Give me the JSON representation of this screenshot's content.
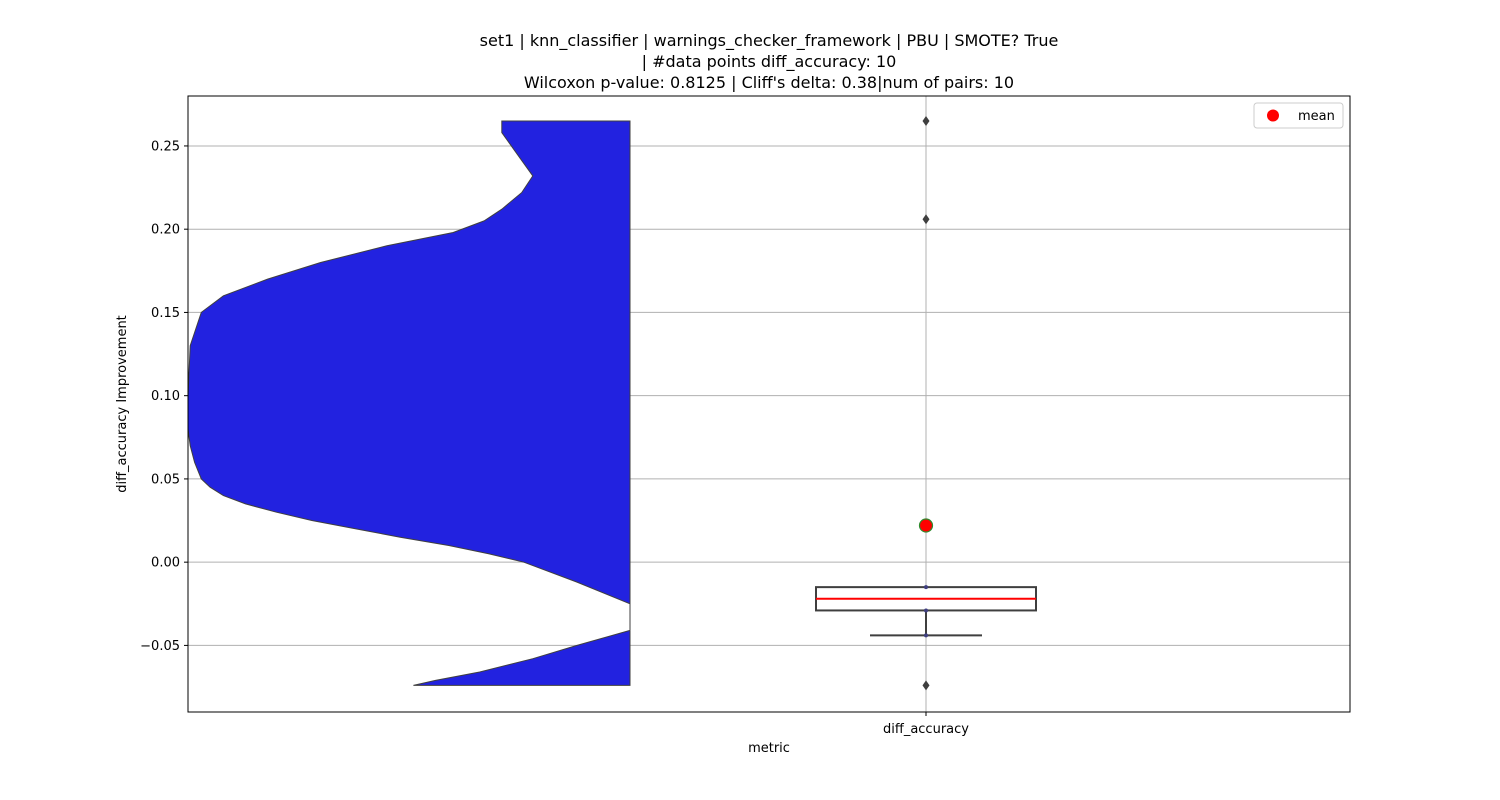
{
  "chart_data": {
    "type": "violin+box",
    "title_lines": [
      "set1 | knn_classifier | warnings_checker_framework | PBU | SMOTE? True",
      "| #data points diff_accuracy: 10",
      "Wilcoxon p-value: 0.8125 | Cliff's delta: 0.38|num of pairs: 10"
    ],
    "xlabel": "metric",
    "ylabel": "diff_accuracy Improvement",
    "categories": [
      "diff_accuracy"
    ],
    "ylim": [
      -0.09,
      0.28
    ],
    "yticks": [
      -0.05,
      0.0,
      0.05,
      0.1,
      0.15,
      0.2,
      0.25
    ],
    "ytick_labels": [
      "−0.05",
      "0.00",
      "0.05",
      "0.10",
      "0.15",
      "0.20",
      "0.25"
    ],
    "grid": true,
    "legend": {
      "placement": "top-right",
      "entries": [
        {
          "label": "mean",
          "color": "#ff0000",
          "marker": "circle"
        }
      ]
    },
    "violin": {
      "color": "#2222e0",
      "side": "left",
      "range": [
        -0.074,
        0.265
      ],
      "density_profile": [
        [
          0.265,
          0.29
        ],
        [
          0.258,
          0.29
        ],
        [
          0.245,
          0.255
        ],
        [
          0.232,
          0.22
        ],
        [
          0.222,
          0.245
        ],
        [
          0.212,
          0.29
        ],
        [
          0.205,
          0.33
        ],
        [
          0.198,
          0.4
        ],
        [
          0.19,
          0.55
        ],
        [
          0.18,
          0.7
        ],
        [
          0.17,
          0.82
        ],
        [
          0.16,
          0.92
        ],
        [
          0.15,
          0.97
        ],
        [
          0.13,
          0.995
        ],
        [
          0.1,
          1.0
        ],
        [
          0.08,
          1.0
        ],
        [
          0.07,
          0.995
        ],
        [
          0.06,
          0.985
        ],
        [
          0.05,
          0.97
        ],
        [
          0.045,
          0.95
        ],
        [
          0.04,
          0.92
        ],
        [
          0.035,
          0.87
        ],
        [
          0.03,
          0.8
        ],
        [
          0.025,
          0.72
        ],
        [
          0.02,
          0.62
        ],
        [
          0.015,
          0.52
        ],
        [
          0.01,
          0.41
        ],
        [
          0.005,
          0.32
        ],
        [
          0.0,
          0.24
        ],
        [
          -0.012,
          0.12
        ],
        [
          -0.025,
          0.0
        ],
        [
          -0.041,
          0.0
        ],
        [
          -0.05,
          0.12
        ],
        [
          -0.058,
          0.22
        ],
        [
          -0.066,
          0.34
        ],
        [
          -0.071,
          0.44
        ],
        [
          -0.074,
          0.49
        ]
      ]
    },
    "box": {
      "q1": -0.029,
      "median": -0.022,
      "q3": -0.015,
      "whisker_low": -0.044,
      "whisker_high": -0.015,
      "outliers": [
        0.265,
        0.206,
        -0.074
      ],
      "median_color": "#ff0000",
      "edge_color": "#3f3f3f"
    },
    "points": [
      -0.015,
      -0.029,
      -0.044
    ],
    "mean": 0.022,
    "mean_color": "#ff0000",
    "mean_edge_color": "#2e8b2e"
  }
}
